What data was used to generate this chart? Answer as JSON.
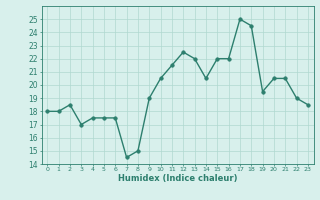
{
  "x": [
    0,
    1,
    2,
    3,
    4,
    5,
    6,
    7,
    8,
    9,
    10,
    11,
    12,
    13,
    14,
    15,
    16,
    17,
    18,
    19,
    20,
    21,
    22,
    23
  ],
  "y": [
    18,
    18,
    18.5,
    17,
    17.5,
    17.5,
    17.5,
    14.5,
    15,
    19,
    20.5,
    21.5,
    22.5,
    22,
    20.5,
    22,
    22,
    25,
    24.5,
    19.5,
    20.5,
    20.5,
    19,
    18.5
  ],
  "xlabel": "Humidex (Indice chaleur)",
  "ylim": [
    14,
    26
  ],
  "xlim": [
    -0.5,
    23.5
  ],
  "yticks": [
    14,
    15,
    16,
    17,
    18,
    19,
    20,
    21,
    22,
    23,
    24,
    25
  ],
  "xticks": [
    0,
    1,
    2,
    3,
    4,
    5,
    6,
    7,
    8,
    9,
    10,
    11,
    12,
    13,
    14,
    15,
    16,
    17,
    18,
    19,
    20,
    21,
    22,
    23
  ],
  "line_color": "#2d7f6e",
  "bg_color": "#d8f0ec",
  "grid_color": "#b0d8d0",
  "xlabel_color": "#2d7f6e",
  "tick_color": "#2d7f6e",
  "marker_size": 2.5,
  "linewidth": 1.0
}
